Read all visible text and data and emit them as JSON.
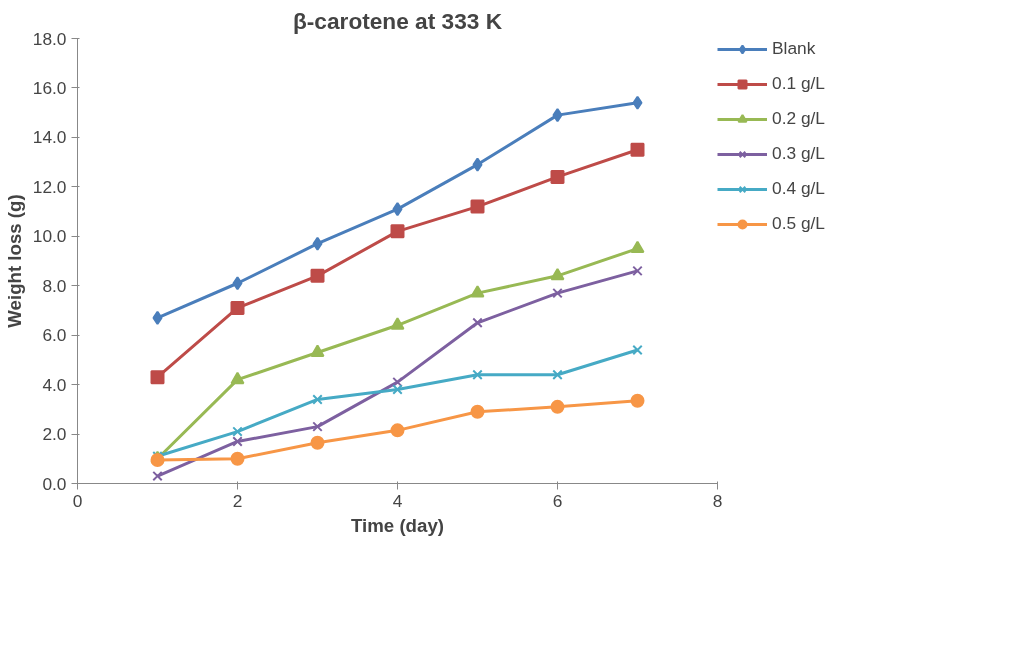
{
  "chart_data": {
    "type": "line",
    "title": "β-carotene at 333 K",
    "xlabel": "Time (day)",
    "ylabel": "Weight loss (g)",
    "x": [
      1,
      2,
      3,
      4,
      5,
      6,
      7
    ],
    "series": [
      {
        "name": "Blank",
        "color": "#4a7ebb",
        "marker": "diamond",
        "values": [
          6.7,
          8.1,
          9.7,
          11.1,
          12.9,
          14.9,
          15.4
        ]
      },
      {
        "name": "0.1 g/L",
        "color": "#be4b48",
        "marker": "square",
        "values": [
          4.3,
          7.1,
          8.4,
          10.2,
          11.2,
          12.4,
          13.5
        ]
      },
      {
        "name": "0.2 g/L",
        "color": "#98b954",
        "marker": "triangle",
        "values": [
          1.0,
          4.2,
          5.3,
          6.4,
          7.7,
          8.4,
          9.5
        ]
      },
      {
        "name": "0.3 g/L",
        "color": "#7d60a0",
        "marker": "cross",
        "values": [
          0.3,
          1.7,
          2.3,
          4.1,
          6.5,
          7.7,
          8.6
        ]
      },
      {
        "name": "0.4 g/L",
        "color": "#46aac5",
        "marker": "cross",
        "values": [
          1.1,
          2.1,
          3.4,
          3.8,
          4.4,
          4.4,
          5.4
        ]
      },
      {
        "name": "0.5 g/L",
        "color": "#f79646",
        "marker": "circle",
        "values": [
          0.95,
          1.0,
          1.65,
          2.15,
          2.9,
          3.1,
          3.35
        ]
      }
    ],
    "xlim": [
      0,
      8
    ],
    "xticks": [
      0,
      2,
      4,
      6,
      8
    ],
    "ylim": [
      0,
      18
    ],
    "yticks": [
      {
        "value": 0,
        "label": "0.0"
      },
      {
        "value": 2,
        "label": "2.0"
      },
      {
        "value": 4,
        "label": "4.0"
      },
      {
        "value": 6,
        "label": "6.0"
      },
      {
        "value": 8,
        "label": "8.0"
      },
      {
        "value": 10,
        "label": "10.0"
      },
      {
        "value": 12,
        "label": "12.0"
      },
      {
        "value": 14,
        "label": "14.0"
      },
      {
        "value": 16,
        "label": "16.0"
      },
      {
        "value": 18,
        "label": "18.0"
      }
    ],
    "grid": false,
    "legend": "right",
    "line_style": "solid"
  }
}
